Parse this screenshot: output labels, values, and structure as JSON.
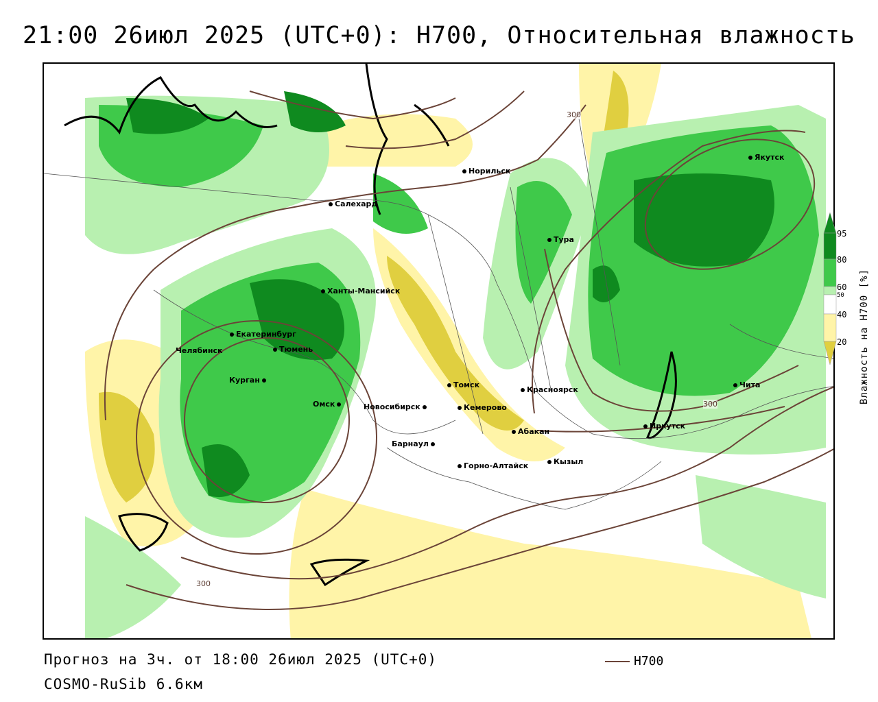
{
  "title": "21:00 26июл 2025 (UTC+0): H700, Относительная влажность",
  "footer": {
    "forecast": "Прогноз на 3ч. от 18:00 26июл 2025 (UTC+0)",
    "model": "COSMO-RuSib 6.6км",
    "line_legend": "H700"
  },
  "colorbar": {
    "title": "Влажность на H700 [%]",
    "ticks": [
      "95",
      "80",
      "60",
      "50",
      "40",
      "20"
    ],
    "colors": [
      "#0f8a1f",
      "#3fc94a",
      "#b8f0b0",
      "#ffffff",
      "#fff4a8",
      "#e0cf40"
    ]
  },
  "contour_labels": [
    "300",
    "300",
    "300"
  ],
  "cities": [
    {
      "name": "Норильск"
    },
    {
      "name": "Якутск"
    },
    {
      "name": "Салехард"
    },
    {
      "name": "Тура"
    },
    {
      "name": "Ханты-Мансийск"
    },
    {
      "name": "Екатеринбург"
    },
    {
      "name": "Тюмень"
    },
    {
      "name": "Челябинск"
    },
    {
      "name": "Курган"
    },
    {
      "name": "Омск"
    },
    {
      "name": "Новосибирск"
    },
    {
      "name": "Томск"
    },
    {
      "name": "Кемерово"
    },
    {
      "name": "Красноярск"
    },
    {
      "name": "Абакан"
    },
    {
      "name": "Барнаул"
    },
    {
      "name": "Горно-Алтайск"
    },
    {
      "name": "Кызыл"
    },
    {
      "name": "Иркутск"
    },
    {
      "name": "Чита"
    }
  ]
}
